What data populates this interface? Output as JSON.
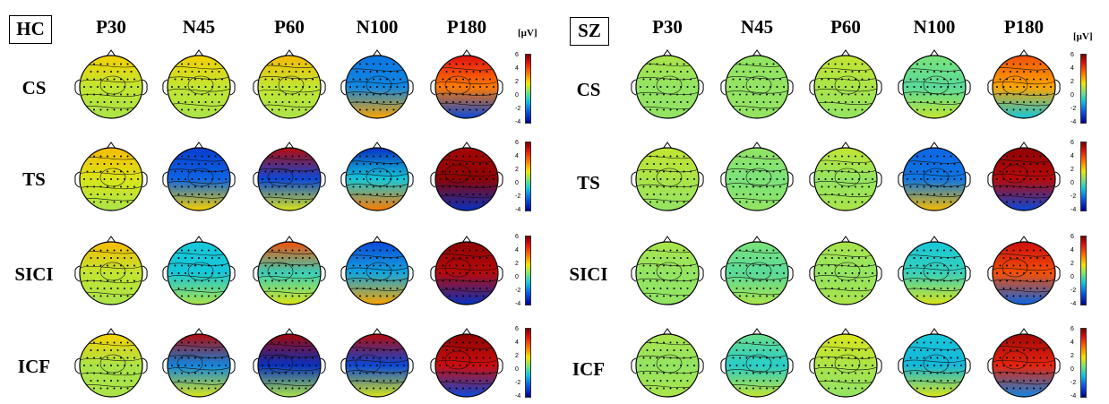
{
  "groups": [
    {
      "label": "HC",
      "components": [
        "P30",
        "N45",
        "P60",
        "N100",
        "P180"
      ],
      "unit": "[µV]",
      "rows": [
        {
          "label": "CS",
          "maps": [
            "cs-p30",
            "cs-n45",
            "cs-p60",
            "cs-n100",
            "cs-p180"
          ]
        },
        {
          "label": "TS",
          "maps": [
            "ts-p30",
            "ts-n45",
            "ts-p60",
            "ts-n100",
            "ts-p180"
          ]
        },
        {
          "label": "SICI",
          "maps": [
            "sici-p30",
            "sici-n45",
            "sici-p60",
            "sici-n100",
            "sici-p180"
          ]
        },
        {
          "label": "ICF",
          "maps": [
            "icf-p30",
            "icf-n45",
            "icf-p60",
            "icf-n100",
            "icf-p180"
          ]
        }
      ]
    },
    {
      "label": "SZ",
      "components": [
        "P30",
        "N45",
        "P60",
        "N100",
        "P180"
      ],
      "unit": "[µV]",
      "rows": [
        {
          "label": "CS",
          "maps": [
            "cs-p30",
            "cs-n45",
            "cs-p60",
            "cs-n100",
            "cs-p180"
          ]
        },
        {
          "label": "TS",
          "maps": [
            "ts-p30",
            "ts-n45",
            "ts-p60",
            "ts-n100",
            "ts-p180"
          ]
        },
        {
          "label": "SICI",
          "maps": [
            "sici-p30",
            "sici-n45",
            "sici-p60",
            "sici-n100",
            "sici-p180"
          ]
        },
        {
          "label": "ICF",
          "maps": [
            "icf-p30",
            "icf-n45",
            "icf-p60",
            "icf-n100",
            "icf-p180"
          ]
        }
      ]
    }
  ],
  "colorbar": {
    "ticks": [
      "6",
      "4",
      "2",
      "0",
      "-2",
      "-4"
    ],
    "colors": [
      "#7a0000",
      "#e01010",
      "#ff7a00",
      "#f2e600",
      "#7be37a",
      "#16c7d9",
      "#0b55e6",
      "#00008f"
    ]
  },
  "heatmaps": {
    "HC": [
      [
        [
          0.3,
          0.15,
          0.1
        ],
        [
          0.3,
          0.15,
          0.1
        ],
        [
          0.35,
          0.15,
          0.1
        ],
        [
          -0.55,
          -0.5,
          0.4
        ],
        [
          0.75,
          0.5,
          -0.7
        ]
      ],
      [
        [
          0.35,
          0.2,
          0.1
        ],
        [
          -0.75,
          -0.6,
          0.3
        ],
        [
          0.85,
          -0.7,
          0.2
        ],
        [
          -0.8,
          -0.3,
          0.5
        ],
        [
          0.9,
          0.95,
          -0.8
        ]
      ],
      [
        [
          0.35,
          0.15,
          0.1
        ],
        [
          -0.3,
          -0.3,
          0.1
        ],
        [
          0.6,
          -0.2,
          0.2
        ],
        [
          -0.7,
          -0.4,
          0.4
        ],
        [
          0.95,
          0.85,
          -0.8
        ]
      ],
      [
        [
          0.3,
          0.1,
          0.1
        ],
        [
          0.85,
          -0.5,
          0.2
        ],
        [
          0.9,
          -0.8,
          0.1
        ],
        [
          0.85,
          -0.7,
          0.2
        ],
        [
          0.95,
          0.8,
          -0.7
        ]
      ]
    ],
    "SZ": [
      [
        [
          0.1,
          0.05,
          0.05
        ],
        [
          0.05,
          0.05,
          0.05
        ],
        [
          0.15,
          0.1,
          0.05
        ],
        [
          0.0,
          -0.1,
          0.15
        ],
        [
          0.6,
          0.4,
          -0.3
        ]
      ],
      [
        [
          0.15,
          0.1,
          0.05
        ],
        [
          0.05,
          0.0,
          0.05
        ],
        [
          0.15,
          0.05,
          0.1
        ],
        [
          -0.6,
          -0.55,
          0.35
        ],
        [
          0.95,
          0.85,
          -0.7
        ]
      ],
      [
        [
          0.1,
          0.05,
          0.05
        ],
        [
          0.0,
          -0.1,
          0.1
        ],
        [
          0.1,
          0.05,
          0.1
        ],
        [
          -0.3,
          -0.2,
          0.2
        ],
        [
          0.8,
          0.6,
          -0.6
        ]
      ],
      [
        [
          0.1,
          0.05,
          0.1
        ],
        [
          -0.05,
          -0.25,
          0.15
        ],
        [
          0.2,
          0.1,
          0.05
        ],
        [
          -0.3,
          -0.35,
          0.2
        ],
        [
          0.9,
          0.7,
          -0.5
        ]
      ]
    ]
  }
}
